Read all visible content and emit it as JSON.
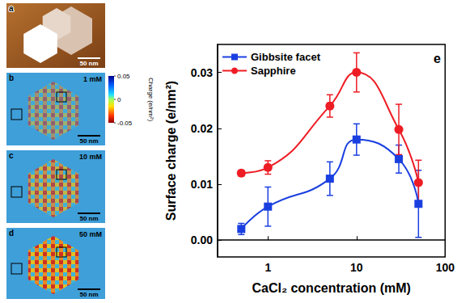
{
  "panels": [
    {
      "label": "a",
      "scale_bar": "50 nm"
    },
    {
      "label": "b",
      "concentration": "1 mM",
      "scale_bar": "50 nm"
    },
    {
      "label": "c",
      "concentration": "10 mM",
      "scale_bar": "50 nm"
    },
    {
      "label": "d",
      "concentration": "50 mM",
      "scale_bar": "50 nm"
    }
  ],
  "colorbar": {
    "title": "Charge (e/nm²)",
    "range": [
      -0.05,
      0.05
    ],
    "ticks": [
      0.05,
      0,
      -0.05
    ]
  },
  "chart_data": {
    "type": "line",
    "annotation": "e",
    "x_label": "CaCl₂ concentration (mM)",
    "y_label": "Surface charge (e/nm²)",
    "x": [
      0.5,
      1,
      5,
      10,
      30,
      50
    ],
    "series": [
      {
        "name": "Gibbsite facet",
        "color": "#1a3fe0",
        "marker": "square",
        "values": [
          0.002,
          0.006,
          0.011,
          0.018,
          0.0145,
          0.0065
        ],
        "errors": [
          0.001,
          0.0035,
          0.003,
          0.0028,
          0.0025,
          0.006
        ]
      },
      {
        "name": "Sapphire",
        "color": "#ee1c24",
        "marker": "circle",
        "values": [
          0.012,
          0.013,
          0.024,
          0.03,
          0.0198,
          0.0103
        ],
        "errors": [
          0.0005,
          0.0012,
          0.002,
          0.0035,
          0.0045,
          0.004
        ]
      }
    ],
    "log": "x",
    "xlim": [
      0.27,
      100
    ],
    "xticks": [
      1,
      10,
      100
    ],
    "ylim": [
      -0.003,
      0.035
    ],
    "yticks": [
      {
        "value": 0,
        "label": "0.00"
      },
      0.01,
      0.02,
      0.03
    ],
    "grid": false,
    "legend": "upper left"
  }
}
